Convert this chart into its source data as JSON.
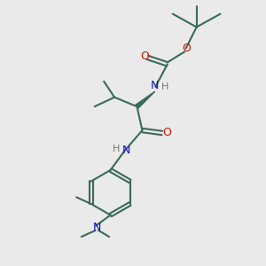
{
  "bg_color": "#eaeaea",
  "bond_color": "#3a6a5a",
  "o_color": "#cc1100",
  "n_color": "#1111cc",
  "h_color": "#777777",
  "lw": 1.5,
  "fs": 9,
  "figsize": [
    3.0,
    3.0
  ],
  "dpi": 100,
  "xlim": [
    0,
    10
  ],
  "ylim": [
    0,
    10
  ]
}
